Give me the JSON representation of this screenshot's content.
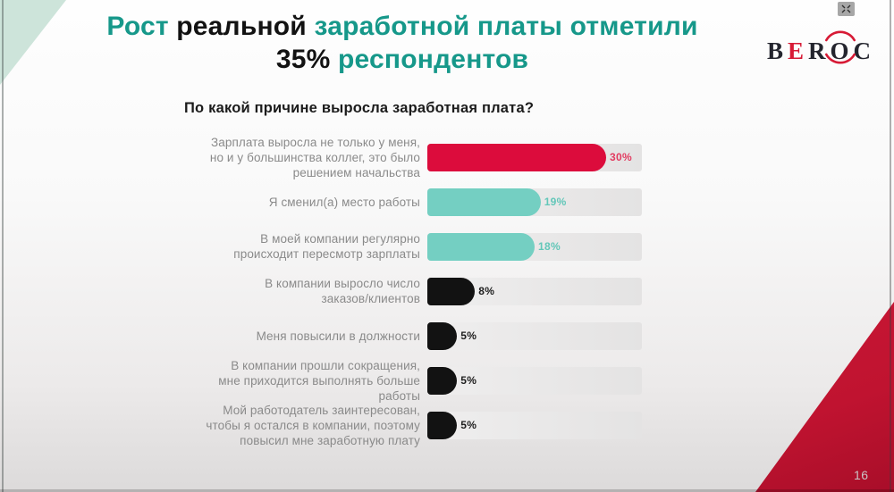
{
  "slide": {
    "title_segments": [
      {
        "text": "Рост ",
        "color": "teal"
      },
      {
        "text": "реальной ",
        "color": "dark"
      },
      {
        "text": "заработной платы отметили",
        "color": "teal"
      },
      {
        "text": "\n",
        "color": "dark"
      },
      {
        "text": "35% ",
        "color": "dark"
      },
      {
        "text": "респондентов",
        "color": "teal"
      }
    ],
    "page_number": "16"
  },
  "logo": {
    "letters": [
      "B",
      "E",
      "R",
      "O",
      "C"
    ],
    "accent_color": "#d71a35"
  },
  "icons": {
    "overlay_button": "compress-arrows-icon",
    "logo_decoration": "circle-arcs-icon"
  },
  "chart_data": {
    "type": "bar",
    "orientation": "horizontal",
    "title": "По какой причине выросла заработная плата?",
    "categories": [
      "Зарплата выросла не только у меня,\nно и у большинства коллег, это было\nрешением начальства",
      "Я сменил(а) место работы",
      "В моей компании регулярно\nпроисходит пересмотр зарплаты",
      "В компании выросло число\nзаказов/клиентов",
      "Меня повысили в должности",
      "В компании прошли сокращения,\nмне приходится выполнять больше\nработы",
      "Мой работодатель заинтересован,\nчтобы я остался в компании, поэтому\nповысил мне заработную плату"
    ],
    "values": [
      30,
      19,
      18,
      8,
      5,
      5,
      5
    ],
    "value_labels": [
      "30%",
      "19%",
      "18%",
      "8%",
      "5%",
      "5%",
      "5%"
    ],
    "unit": "%",
    "xlim": [
      0,
      36
    ],
    "grid": false,
    "legend": "none",
    "bar_colors": [
      "#dc0c3c",
      "#74cfc2",
      "#74cfc2",
      "#121212",
      "#121212",
      "#121212",
      "#121212"
    ],
    "value_label_colors": [
      "#e23b60",
      "#63c7b9",
      "#63c7b9",
      "#1d1d1d",
      "#1d1d1d",
      "#1d1d1d",
      "#1d1d1d"
    ]
  },
  "colors": {
    "title_teal": "#16988a",
    "corner_green": "#cde4da",
    "corner_red": "#c01330",
    "track_gray": "#e9e8e8"
  }
}
